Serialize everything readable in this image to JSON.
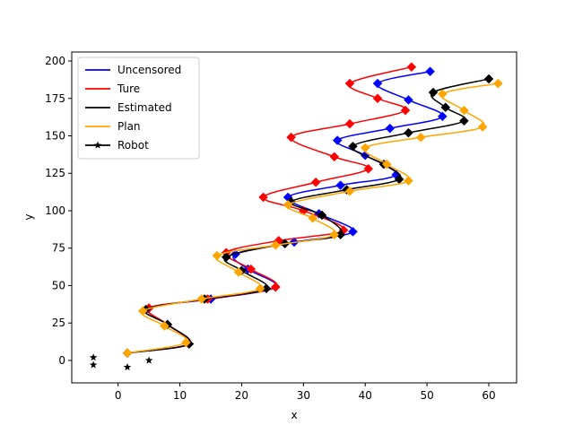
{
  "chart_data": {
    "type": "line",
    "title": "",
    "xlabel": "x",
    "ylabel": "y",
    "xlim": [
      -7.5,
      64.5
    ],
    "ylim": [
      -15,
      206
    ],
    "xticks": [
      0,
      10,
      20,
      30,
      40,
      50,
      60
    ],
    "yticks": [
      0,
      25,
      50,
      75,
      100,
      125,
      150,
      175,
      200
    ],
    "grid": false,
    "legend_position": "top-left",
    "colors": {
      "Uncensored": "#0000ff",
      "Ture": "#ff0000",
      "Estimated": "#000000",
      "Plan": "#ffa500",
      "Robot": "#000000"
    },
    "robot_positions": [
      [
        -4,
        2
      ],
      [
        -4,
        -3
      ],
      [
        1.5,
        -4.5
      ],
      [
        5,
        0
      ]
    ],
    "series": [
      {
        "name": "Uncensored",
        "points": [
          [
            1.5,
            5
          ],
          [
            11.5,
            11
          ],
          [
            8,
            24
          ],
          [
            5,
            35
          ],
          [
            15,
            41
          ],
          [
            25.5,
            49
          ],
          [
            21,
            61
          ],
          [
            19,
            71
          ],
          [
            28.5,
            79
          ],
          [
            38,
            86
          ],
          [
            32.5,
            98
          ],
          [
            27.5,
            109
          ],
          [
            36,
            117
          ],
          [
            45,
            124
          ],
          [
            40,
            137
          ],
          [
            35.5,
            147
          ],
          [
            44,
            155
          ],
          [
            52.5,
            163
          ],
          [
            47,
            174
          ],
          [
            42,
            185
          ],
          [
            50.5,
            193
          ]
        ],
        "markers": [
          [
            1.5,
            5
          ],
          [
            11.5,
            11
          ],
          [
            8,
            24
          ],
          [
            5,
            35
          ],
          [
            15,
            41
          ],
          [
            25.5,
            49
          ],
          [
            21,
            61
          ],
          [
            19,
            71
          ],
          [
            28.5,
            79
          ],
          [
            38,
            86
          ],
          [
            32.5,
            98
          ],
          [
            27.5,
            109
          ],
          [
            36,
            117
          ],
          [
            45,
            124
          ],
          [
            40,
            137
          ],
          [
            35.5,
            147
          ],
          [
            44,
            155
          ],
          [
            52.5,
            163
          ],
          [
            47,
            174
          ],
          [
            42,
            185
          ],
          [
            50.5,
            193
          ]
        ]
      },
      {
        "name": "Ture",
        "points": [
          [
            1.5,
            5
          ],
          [
            11.5,
            11
          ],
          [
            8,
            24
          ],
          [
            5,
            35
          ],
          [
            14.5,
            41
          ],
          [
            25.5,
            49
          ],
          [
            21.5,
            61
          ],
          [
            17.5,
            72
          ],
          [
            26,
            80
          ],
          [
            36.5,
            87
          ],
          [
            30,
            100
          ],
          [
            23.5,
            109
          ],
          [
            32,
            119
          ],
          [
            40.5,
            128
          ],
          [
            35,
            136
          ],
          [
            28,
            149
          ],
          [
            37.5,
            158
          ],
          [
            46.5,
            167
          ],
          [
            42,
            175
          ],
          [
            37.5,
            185
          ],
          [
            47.5,
            196
          ]
        ],
        "markers": [
          [
            1.5,
            5
          ],
          [
            11.5,
            11
          ],
          [
            8,
            24
          ],
          [
            5,
            35
          ],
          [
            14.5,
            41
          ],
          [
            25.5,
            49
          ],
          [
            21.5,
            61
          ],
          [
            17.5,
            72
          ],
          [
            26,
            80
          ],
          [
            36.5,
            87
          ],
          [
            30,
            100
          ],
          [
            23.5,
            109
          ],
          [
            32,
            119
          ],
          [
            40.5,
            128
          ],
          [
            35,
            136
          ],
          [
            28,
            149
          ],
          [
            37.5,
            158
          ],
          [
            46.5,
            167
          ],
          [
            42,
            175
          ],
          [
            37.5,
            185
          ],
          [
            47.5,
            196
          ]
        ]
      },
      {
        "name": "Estimated",
        "points": [
          [
            1.5,
            5
          ],
          [
            11.5,
            11
          ],
          [
            8,
            24
          ],
          [
            4.5,
            34
          ],
          [
            14,
            41
          ],
          [
            24,
            48
          ],
          [
            20,
            60
          ],
          [
            17.5,
            69
          ],
          [
            27,
            78
          ],
          [
            36,
            84
          ],
          [
            33,
            97
          ],
          [
            28,
            106
          ],
          [
            37,
            114
          ],
          [
            45.5,
            121
          ],
          [
            43,
            131
          ],
          [
            38,
            143
          ],
          [
            47,
            152
          ],
          [
            56,
            160
          ],
          [
            53,
            169
          ],
          [
            51,
            179
          ],
          [
            60,
            188
          ]
        ],
        "markers": [
          [
            1.5,
            5
          ],
          [
            11.5,
            11
          ],
          [
            8,
            24
          ],
          [
            4.5,
            34
          ],
          [
            14,
            41
          ],
          [
            24,
            48
          ],
          [
            20,
            60
          ],
          [
            17.5,
            69
          ],
          [
            27,
            78
          ],
          [
            36,
            84
          ],
          [
            33,
            97
          ],
          [
            28,
            106
          ],
          [
            37,
            114
          ],
          [
            45.5,
            121
          ],
          [
            43,
            131
          ],
          [
            38,
            143
          ],
          [
            47,
            152
          ],
          [
            56,
            160
          ],
          [
            53,
            169
          ],
          [
            51,
            179
          ],
          [
            60,
            188
          ]
        ]
      },
      {
        "name": "Plan",
        "points": [
          [
            1.5,
            5
          ],
          [
            11,
            12
          ],
          [
            7.5,
            23
          ],
          [
            4,
            33
          ],
          [
            13.5,
            41
          ],
          [
            23,
            48
          ],
          [
            19.5,
            59
          ],
          [
            16,
            70
          ],
          [
            25.5,
            77
          ],
          [
            35,
            84
          ],
          [
            31.5,
            95
          ],
          [
            27.5,
            104
          ],
          [
            37.5,
            113
          ],
          [
            47,
            120
          ],
          [
            43.5,
            131
          ],
          [
            40,
            142
          ],
          [
            49,
            149
          ],
          [
            59,
            156
          ],
          [
            56,
            167
          ],
          [
            52.5,
            178
          ],
          [
            61.5,
            185
          ]
        ],
        "markers": [
          [
            1.5,
            5
          ],
          [
            11,
            12
          ],
          [
            7.5,
            23
          ],
          [
            4,
            33
          ],
          [
            13.5,
            41
          ],
          [
            23,
            48
          ],
          [
            19.5,
            59
          ],
          [
            16,
            70
          ],
          [
            25.5,
            77
          ],
          [
            35,
            84
          ],
          [
            31.5,
            95
          ],
          [
            27.5,
            104
          ],
          [
            37.5,
            113
          ],
          [
            47,
            120
          ],
          [
            43.5,
            131
          ],
          [
            40,
            142
          ],
          [
            49,
            149
          ],
          [
            59,
            156
          ],
          [
            56,
            167
          ],
          [
            52.5,
            178
          ],
          [
            61.5,
            185
          ]
        ]
      }
    ],
    "legend": [
      "Uncensored",
      "Ture",
      "Estimated",
      "Plan",
      "Robot"
    ]
  }
}
